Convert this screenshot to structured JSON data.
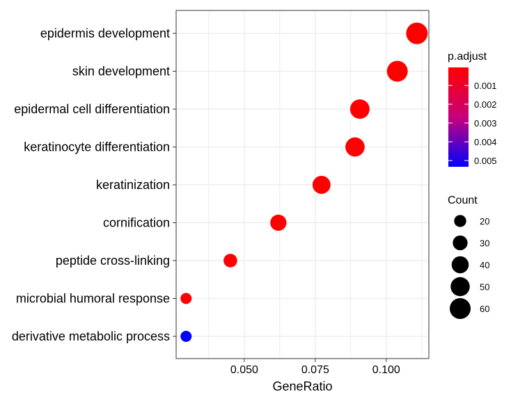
{
  "chart_data": {
    "type": "scatter",
    "title": "",
    "xlabel": "GeneRatio",
    "ylabel": "",
    "xlim": [
      0.026,
      0.115
    ],
    "xticks": [
      0.05,
      0.075,
      0.1
    ],
    "xtick_labels": [
      "0.050",
      "0.075",
      "0.100"
    ],
    "grid": true,
    "categories": [
      "epidermis development",
      "skin development",
      "epidermal cell differentiation",
      "keratinocyte differentiation",
      "keratinization",
      "cornification",
      "peptide cross-linking",
      "microbial humoral response",
      "derivative metabolic process"
    ],
    "gene_ratio": [
      0.1108,
      0.1039,
      0.0907,
      0.089,
      0.0772,
      0.062,
      0.0451,
      0.0295,
      0.0295
    ],
    "count": [
      60,
      56,
      49,
      48,
      42,
      34,
      24,
      16,
      16
    ],
    "p_adjust": [
      5e-05,
      5e-05,
      5e-05,
      5e-05,
      5e-05,
      5e-05,
      5e-05,
      0.0001,
      0.0053
    ],
    "color_legend": {
      "title": "p.adjust",
      "range": [
        4e-05,
        0.00533
      ],
      "ticks": [
        0.001,
        0.002,
        0.003,
        0.004,
        0.005
      ],
      "tick_labels": [
        "0.001",
        "0.002",
        "0.003",
        "0.004",
        "0.005"
      ],
      "low_color": "#ff0000",
      "high_color": "#0000ff",
      "placement": "right"
    },
    "size_legend": {
      "title": "Count",
      "values": [
        20,
        30,
        40,
        50,
        60
      ],
      "labels": [
        "20",
        "30",
        "40",
        "50",
        "60"
      ],
      "placement": "right"
    }
  }
}
